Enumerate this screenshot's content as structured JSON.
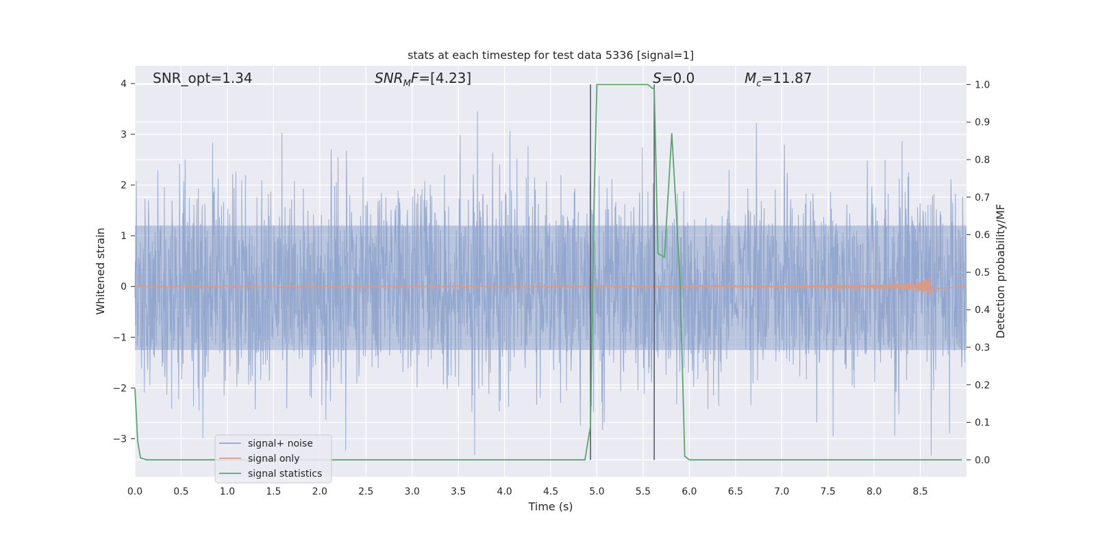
{
  "chart_data": {
    "type": "line",
    "title": "stats at each timestep for test data 5336 [signal=1]",
    "xlabel": "Time (s)",
    "ylabel": "Whitened strain",
    "y2label": "Detection probability/MF",
    "xlim": [
      0.0,
      9.0
    ],
    "ylim": [
      -3.75,
      4.35
    ],
    "y2lim": [
      -0.045,
      1.05
    ],
    "grid": true,
    "legend_position": "lower-left",
    "x_ticks": [
      "0.0",
      "0.5",
      "1.0",
      "1.5",
      "2.0",
      "2.5",
      "3.0",
      "3.5",
      "4.0",
      "4.5",
      "5.0",
      "5.5",
      "6.0",
      "6.5",
      "7.0",
      "7.5",
      "8.0",
      "8.5"
    ],
    "y_ticks": [
      "4",
      "3",
      "2",
      "1",
      "0",
      "−1",
      "−2",
      "−3"
    ],
    "y2_ticks": [
      "1.0",
      "0.9",
      "0.8",
      "0.7",
      "0.6",
      "0.5",
      "0.4",
      "0.3",
      "0.2",
      "0.1",
      "0.0"
    ],
    "annotations": {
      "snr_opt": "SNR_opt=1.34",
      "snr_mf": "=[4.23]",
      "s_stat": "=0.0",
      "mc": "=11.87"
    },
    "vertical_lines_x": [
      4.93,
      5.62
    ],
    "series": [
      {
        "name": "signal+ noise",
        "color": "#8fa4cc",
        "axis": "left",
        "description": "whitened strain, noise-like between about -3.4 and 3.4",
        "dense_band_approx": [
          -1.25,
          1.2
        ],
        "noise_std": 1.0
      },
      {
        "name": "signal only",
        "color": "#dd9a7f",
        "axis": "left",
        "description": "chirp growing in amplitude toward merger",
        "peak_x": 8.65,
        "peak_amplitude": 0.2
      },
      {
        "name": "signal statistics",
        "color": "#55a868",
        "axis": "right",
        "x": [
          0.0,
          0.03,
          0.06,
          0.13,
          1.0,
          2.0,
          3.0,
          4.0,
          4.87,
          4.93,
          4.97,
          5.0,
          5.1,
          5.3,
          5.55,
          5.6,
          5.62,
          5.66,
          5.73,
          5.81,
          5.9,
          5.95,
          6.0,
          6.1,
          7.0,
          8.0,
          8.95
        ],
        "values": [
          0.19,
          0.05,
          0.005,
          0.0,
          0.0,
          0.0,
          0.0,
          0.0,
          0.0,
          0.09,
          0.7,
          1.0,
          1.0,
          1.0,
          1.0,
          0.99,
          0.99,
          0.55,
          0.54,
          0.87,
          0.48,
          0.01,
          0.0,
          0.0,
          0.0,
          0.0,
          0.0
        ]
      }
    ]
  }
}
